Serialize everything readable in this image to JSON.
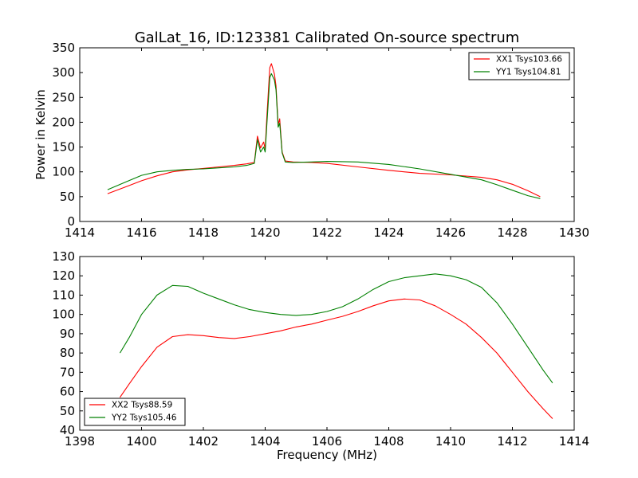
{
  "figure": {
    "title": "GalLat_16, ID:123381 Calibrated On-source spectrum",
    "colors": {
      "red": "#ff0000",
      "green": "#008000",
      "frame": "#000000",
      "background": "#ffffff"
    }
  },
  "chart_data": [
    {
      "type": "line",
      "title": "GalLat_16, ID:123381 Calibrated On-source spectrum",
      "xlabel": "",
      "ylabel": "Power in Kelvin",
      "xlim": [
        1414,
        1430
      ],
      "ylim": [
        0,
        350
      ],
      "xticks": [
        1414,
        1416,
        1418,
        1420,
        1422,
        1424,
        1426,
        1428,
        1430
      ],
      "yticks": [
        0,
        50,
        100,
        150,
        200,
        250,
        300,
        350
      ],
      "grid": false,
      "legend_position": "top-right",
      "series": [
        {
          "name": "XX1 Tsys103.66",
          "color": "#ff0000",
          "x": [
            1414.9,
            1415.5,
            1416.0,
            1416.5,
            1417.0,
            1417.5,
            1418.0,
            1418.5,
            1419.0,
            1419.4,
            1419.65,
            1419.75,
            1419.85,
            1419.95,
            1420.0,
            1420.05,
            1420.15,
            1420.2,
            1420.3,
            1420.35,
            1420.42,
            1420.47,
            1420.55,
            1420.65,
            1420.9,
            1421.5,
            1422.0,
            1423.0,
            1424.0,
            1425.0,
            1426.0,
            1427.0,
            1427.5,
            1428.0,
            1428.5,
            1428.9
          ],
          "y": [
            56,
            70,
            82,
            92,
            100,
            104,
            107,
            110,
            113,
            116,
            119,
            172,
            148,
            160,
            146,
            205,
            310,
            318,
            297,
            273,
            195,
            207,
            140,
            122,
            120,
            119,
            117,
            110,
            103,
            97,
            94,
            89,
            84,
            75,
            62,
            50
          ]
        },
        {
          "name": "YY1 Tsys104.81",
          "color": "#008000",
          "x": [
            1414.9,
            1415.5,
            1416.0,
            1416.5,
            1417.0,
            1417.5,
            1418.0,
            1418.5,
            1419.0,
            1419.4,
            1419.65,
            1419.75,
            1419.85,
            1419.95,
            1420.0,
            1420.05,
            1420.15,
            1420.2,
            1420.3,
            1420.35,
            1420.42,
            1420.47,
            1420.55,
            1420.65,
            1420.9,
            1421.5,
            1422.0,
            1423.0,
            1424.0,
            1425.0,
            1426.0,
            1427.0,
            1427.5,
            1428.0,
            1428.5,
            1428.9
          ],
          "y": [
            64,
            80,
            93,
            100,
            103,
            105,
            106,
            108,
            110,
            113,
            117,
            165,
            140,
            150,
            140,
            190,
            290,
            298,
            285,
            265,
            190,
            198,
            138,
            120,
            119,
            120,
            121,
            120,
            115,
            106,
            95,
            84,
            74,
            63,
            52,
            46
          ]
        }
      ]
    },
    {
      "type": "line",
      "title": "",
      "xlabel": "Frequency (MHz)",
      "ylabel": "",
      "xlim": [
        1398,
        1414
      ],
      "ylim": [
        40,
        130
      ],
      "xticks": [
        1398,
        1400,
        1402,
        1404,
        1406,
        1408,
        1410,
        1412,
        1414
      ],
      "yticks": [
        40,
        50,
        60,
        70,
        80,
        90,
        100,
        110,
        120,
        130
      ],
      "grid": false,
      "legend_position": "bottom-left",
      "series": [
        {
          "name": "XX2 Tsys88.59",
          "color": "#ff0000",
          "x": [
            1399.3,
            1399.6,
            1400.0,
            1400.5,
            1401.0,
            1401.5,
            1402.0,
            1402.5,
            1403.0,
            1403.5,
            1404.0,
            1404.5,
            1405.0,
            1405.5,
            1406.0,
            1406.5,
            1407.0,
            1407.5,
            1408.0,
            1408.5,
            1409.0,
            1409.5,
            1410.0,
            1410.5,
            1411.0,
            1411.5,
            1412.0,
            1412.5,
            1413.0,
            1413.3
          ],
          "y": [
            57,
            64,
            73,
            83,
            88.5,
            89.5,
            89,
            88,
            87.5,
            88.5,
            90,
            91.5,
            93.5,
            95,
            97,
            99,
            101.5,
            104.5,
            107,
            108,
            107.5,
            104.5,
            100,
            95,
            88,
            80,
            70,
            60,
            51,
            46
          ]
        },
        {
          "name": "YY2 Tsys105.46",
          "color": "#008000",
          "x": [
            1399.3,
            1399.6,
            1400.0,
            1400.5,
            1401.0,
            1401.5,
            1402.0,
            1402.5,
            1403.0,
            1403.5,
            1404.0,
            1404.5,
            1405.0,
            1405.5,
            1406.0,
            1406.5,
            1407.0,
            1407.5,
            1408.0,
            1408.5,
            1409.0,
            1409.5,
            1410.0,
            1410.5,
            1411.0,
            1411.5,
            1412.0,
            1412.5,
            1413.0,
            1413.3
          ],
          "y": [
            80,
            88,
            100,
            110,
            115,
            114.5,
            111,
            108,
            105,
            102.5,
            101,
            100,
            99.5,
            100,
            101.5,
            104,
            108,
            113,
            117,
            119,
            120,
            121,
            120,
            118,
            114,
            106,
            95,
            83,
            71,
            64.5
          ]
        }
      ]
    }
  ]
}
